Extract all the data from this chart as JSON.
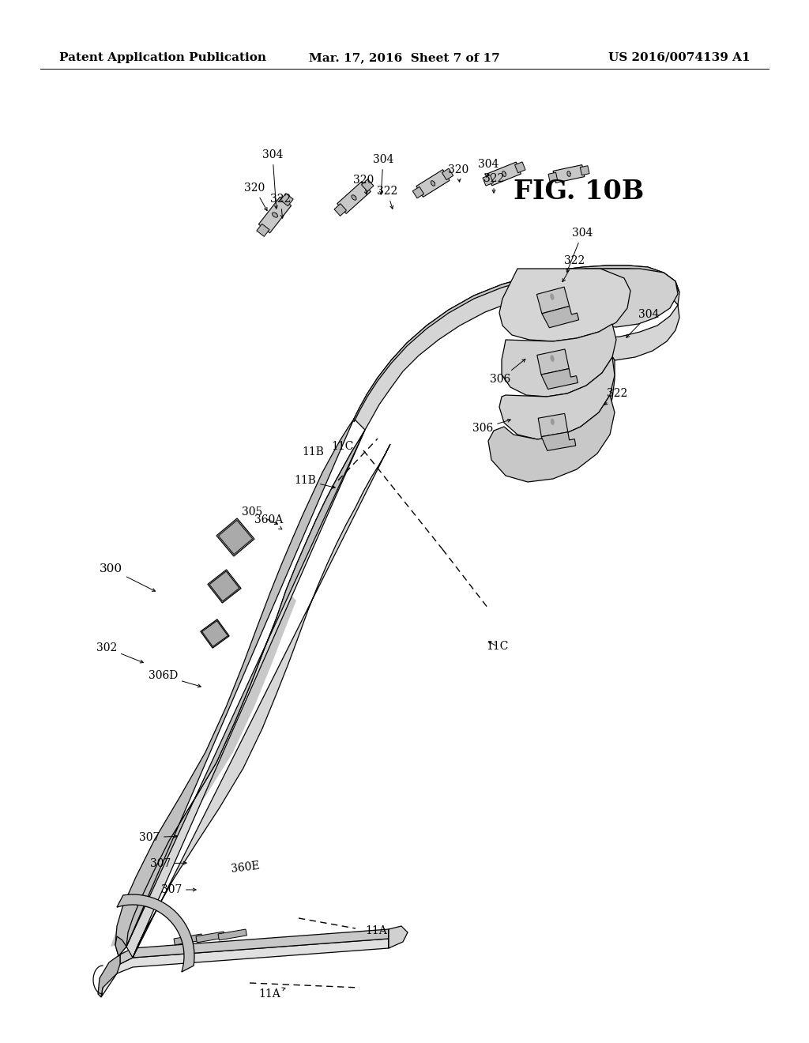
{
  "background_color": "#ffffff",
  "header_left": "Patent Application Publication",
  "header_center": "Mar. 17, 2016  Sheet 7 of 17",
  "header_right": "US 2016/0074139 A1",
  "header_fontsize": 11,
  "figure_caption": "FIG. 10B",
  "line_color": "#000000",
  "fill_light": "#e8e8e8",
  "fill_mid": "#cccccc",
  "fill_dark": "#aaaaaa",
  "fill_darker": "#888888"
}
